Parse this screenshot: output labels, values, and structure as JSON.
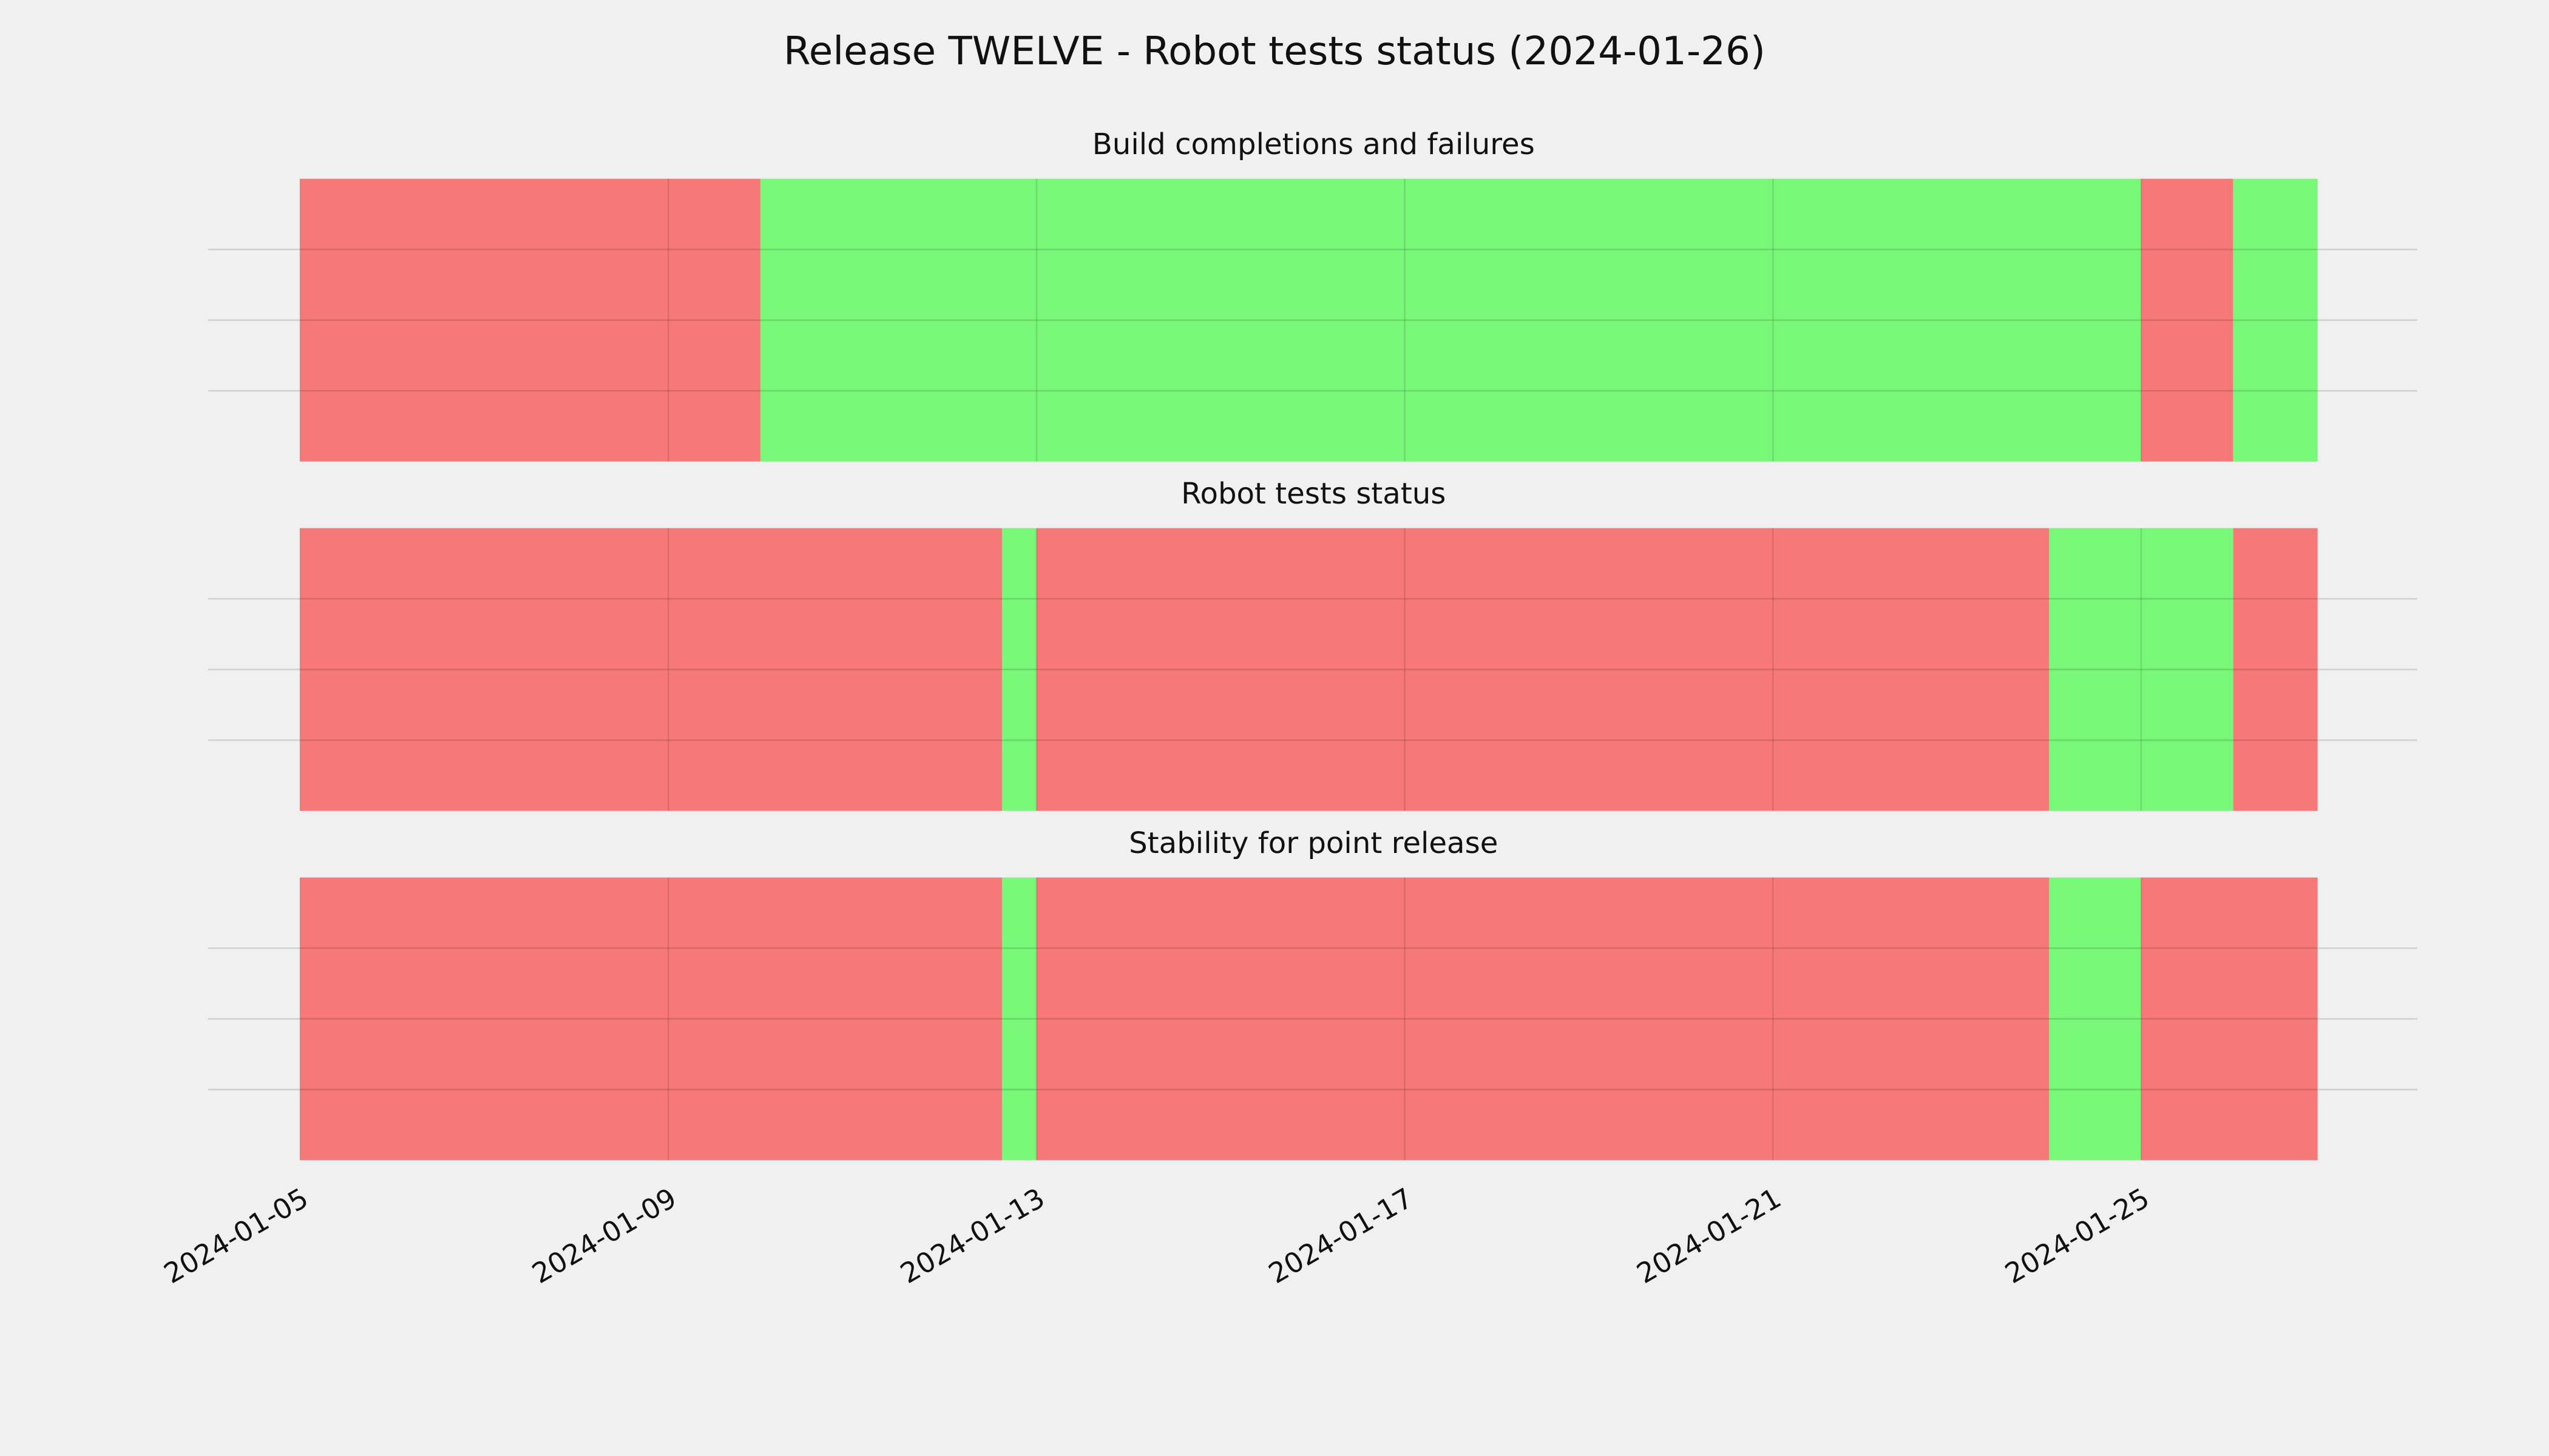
{
  "title": "Release TWELVE - Robot tests status (2024-01-26)",
  "chart_data": [
    {
      "type": "timeline",
      "title": "Build completions and failures",
      "xlim": [
        "2024-01-04",
        "2024-01-28"
      ],
      "xticks": [
        "2024-01-05",
        "2024-01-09",
        "2024-01-13",
        "2024-01-17",
        "2024-01-21",
        "2024-01-25"
      ],
      "ylim": [
        0,
        1
      ],
      "yticks": [
        0.25,
        0.5,
        0.75
      ],
      "grid": true,
      "spans": [
        {
          "start": "2024-01-05",
          "end": "2024-01-10",
          "color": "#f77878"
        },
        {
          "start": "2024-01-10",
          "end": "2024-01-25",
          "color": "#78f778"
        },
        {
          "start": "2024-01-25",
          "end": "2024-01-26",
          "color": "#f77878"
        },
        {
          "start": "2024-01-26",
          "end": "2024-01-26T22:00",
          "color": "#78f778"
        }
      ]
    },
    {
      "type": "timeline",
      "title": "Robot tests status",
      "xlim": [
        "2024-01-04",
        "2024-01-28"
      ],
      "xticks": [
        "2024-01-05",
        "2024-01-09",
        "2024-01-13",
        "2024-01-17",
        "2024-01-21",
        "2024-01-25"
      ],
      "ylim": [
        0,
        1
      ],
      "yticks": [
        0.25,
        0.5,
        0.75
      ],
      "grid": true,
      "spans": [
        {
          "start": "2024-01-05",
          "end": "2024-01-12T15:00",
          "color": "#f77878"
        },
        {
          "start": "2024-01-12T15:00",
          "end": "2024-01-13",
          "color": "#78f778"
        },
        {
          "start": "2024-01-13",
          "end": "2024-01-24",
          "color": "#f77878"
        },
        {
          "start": "2024-01-24",
          "end": "2024-01-26",
          "color": "#78f778"
        },
        {
          "start": "2024-01-26",
          "end": "2024-01-26T22:00",
          "color": "#f77878"
        }
      ]
    },
    {
      "type": "timeline",
      "title": "Stability for point release",
      "xlim": [
        "2024-01-04",
        "2024-01-28"
      ],
      "xticks": [
        "2024-01-05",
        "2024-01-09",
        "2024-01-13",
        "2024-01-17",
        "2024-01-21",
        "2024-01-25"
      ],
      "ylim": [
        0,
        1
      ],
      "yticks": [
        0.25,
        0.5,
        0.75
      ],
      "grid": true,
      "spans": [
        {
          "start": "2024-01-05",
          "end": "2024-01-12T15:00",
          "color": "#f77878"
        },
        {
          "start": "2024-01-12T15:00",
          "end": "2024-01-13",
          "color": "#78f778"
        },
        {
          "start": "2024-01-13",
          "end": "2024-01-24",
          "color": "#f77878"
        },
        {
          "start": "2024-01-24",
          "end": "2024-01-25",
          "color": "#78f778"
        },
        {
          "start": "2024-01-25",
          "end": "2024-01-26T22:00",
          "color": "#f77878"
        }
      ]
    }
  ]
}
